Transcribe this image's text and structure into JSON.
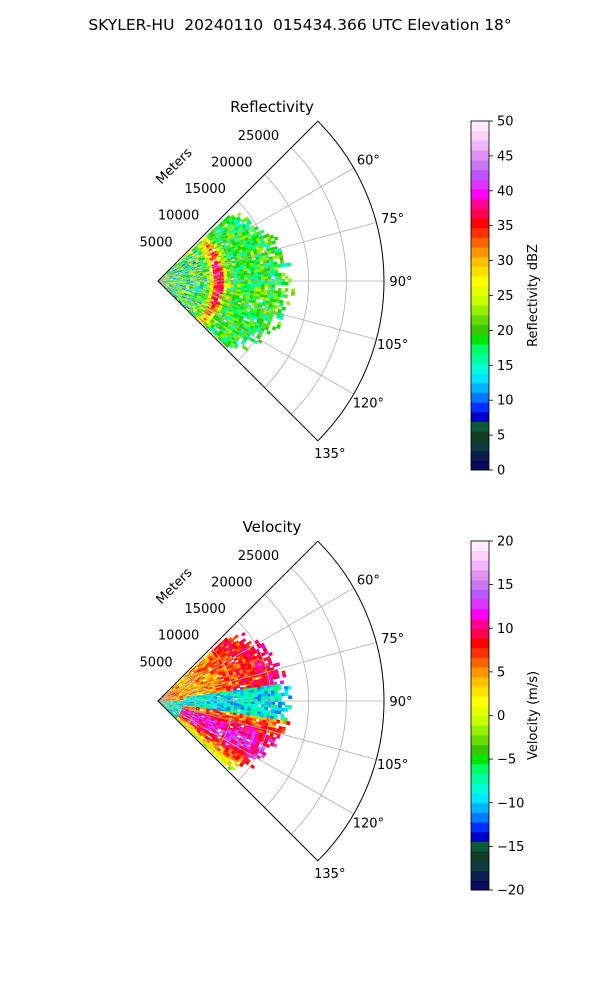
{
  "figure": {
    "title": "SKYLER-HU  20240110  015434.366 UTC Elevation 18°"
  },
  "chart_data": [
    {
      "type": "heatmap",
      "subtype": "polar-sector",
      "title": "Reflectivity",
      "range_label": "Meters",
      "range_ticks": [
        5000,
        10000,
        15000,
        20000,
        25000
      ],
      "range_max": 30000,
      "azimuth_range_deg": [
        45,
        135
      ],
      "azimuth_ticks": [
        "60°",
        "75°",
        "90°",
        "105°",
        "120°",
        "135°"
      ],
      "grid": true,
      "colorbar": {
        "label": "Reflectivity dBZ",
        "min": 0,
        "max": 50,
        "ticks": [
          0,
          5,
          10,
          15,
          20,
          25,
          30,
          35,
          40,
          45,
          50
        ],
        "colors": [
          "#0a0a5c",
          "#0b1f4e",
          "#0e3b3b",
          "#123d22",
          "#0a5b3a",
          "#0000c8",
          "#0030ff",
          "#0078ff",
          "#00b4ff",
          "#00e6ff",
          "#00ffd8",
          "#00ffa0",
          "#00ff64",
          "#00e600",
          "#3cc800",
          "#64dc00",
          "#96f000",
          "#c8ff00",
          "#e6ff00",
          "#ffff00",
          "#ffe000",
          "#ffc000",
          "#ff9600",
          "#ff6400",
          "#ff3000",
          "#ff0000",
          "#ff0050",
          "#ff0096",
          "#ff00ff",
          "#dd33ff",
          "#bb55ff",
          "#c878f0",
          "#e090f0",
          "#f0b4f8",
          "#fad2fa",
          "#ffeaff"
        ]
      },
      "data_summary": {
        "dominant_range_dBZ": [
          15,
          25
        ],
        "max_dBZ": 42,
        "max_region": "near-range arc at about 8000 m, azimuth 70°–110°",
        "data_extent_m": 18000
      }
    },
    {
      "type": "heatmap",
      "subtype": "polar-sector",
      "title": "Velocity",
      "range_label": "Meters",
      "range_ticks": [
        5000,
        10000,
        15000,
        20000,
        25000
      ],
      "range_max": 30000,
      "azimuth_range_deg": [
        45,
        135
      ],
      "azimuth_ticks": [
        "60°",
        "75°",
        "90°",
        "105°",
        "120°",
        "135°"
      ],
      "grid": true,
      "colorbar": {
        "label": "Velocity (m/s)",
        "min": -20,
        "max": 20,
        "ticks": [
          -20,
          -15,
          -10,
          -5,
          0,
          5,
          10,
          15,
          20
        ],
        "colors": [
          "#0a0a5c",
          "#0b1f4e",
          "#0e3b3b",
          "#123d22",
          "#0a5b3a",
          "#0000c8",
          "#0030ff",
          "#0078ff",
          "#00b4ff",
          "#00e6ff",
          "#00ffd8",
          "#00ffa0",
          "#00ff64",
          "#00e600",
          "#3cc800",
          "#64dc00",
          "#96f000",
          "#c8ff00",
          "#e6ff00",
          "#ffff00",
          "#ffe000",
          "#ffc000",
          "#ff9600",
          "#ff6400",
          "#ff3000",
          "#ff0000",
          "#ff0050",
          "#ff0096",
          "#ff00ff",
          "#dd33ff",
          "#bb55ff",
          "#c878f0",
          "#e090f0",
          "#f0b4f8",
          "#fad2fa",
          "#ffeaff"
        ]
      },
      "data_summary": {
        "north_sector_m_s": [
          0,
          10
        ],
        "center_band_m_s": [
          -12,
          -5
        ],
        "south_sector_m_s": [
          0,
          15
        ],
        "data_extent_m": 18000
      }
    }
  ]
}
